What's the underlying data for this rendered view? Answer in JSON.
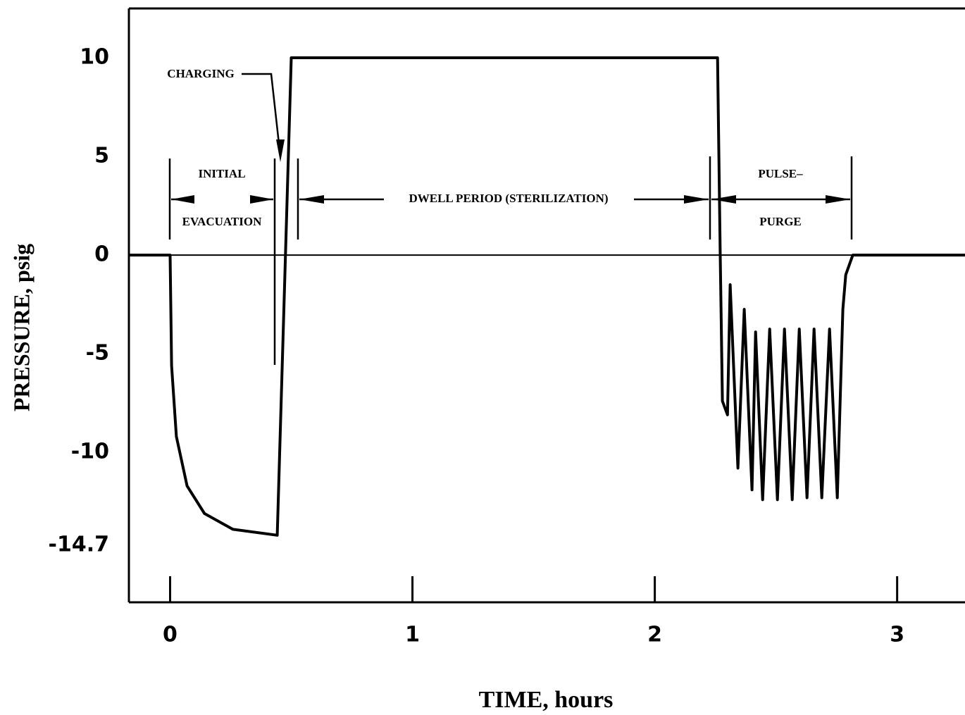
{
  "chart_data": {
    "type": "line",
    "ylabel": "PRESSURE, psig",
    "xlabel": "TIME, hours",
    "annotations": [
      "CHARGING",
      "INITIAL",
      "EVACUATION",
      "DWELL PERIOD (STERILIZATION)",
      "PULSE–",
      "PURGE"
    ],
    "x": [
      -0.17,
      0,
      0.006,
      0.026,
      0.07,
      0.142,
      0.259,
      0.442,
      0.5,
      2.259,
      2.27,
      2.279,
      2.3,
      2.311,
      2.343,
      2.369,
      2.401,
      2.416,
      2.445,
      2.474,
      2.506,
      2.535,
      2.567,
      2.596,
      2.628,
      2.657,
      2.689,
      2.721,
      2.753,
      2.776,
      2.788,
      2.817,
      3.28
    ],
    "values": [
      0,
      0,
      -5.6,
      -9.2,
      -11.7,
      -13.1,
      -13.9,
      -14.2,
      10,
      10,
      0,
      -7.4,
      -8.1,
      -1.5,
      -10.8,
      -2.75,
      -11.9,
      -3.9,
      -12.4,
      -3.75,
      -12.4,
      -3.75,
      -12.4,
      -3.75,
      -12.3,
      -3.75,
      -12.3,
      -3.75,
      -12.3,
      -2.75,
      -1,
      0,
      0
    ],
    "color": "#000000",
    "xlim": [
      -0.17,
      3.28
    ],
    "ylim": [
      -17.6,
      12.5
    ],
    "xticks": [
      0,
      1,
      2,
      3
    ],
    "yticks": [
      -14.7,
      -10,
      -5,
      0,
      5,
      10
    ],
    "zero_line": true
  }
}
